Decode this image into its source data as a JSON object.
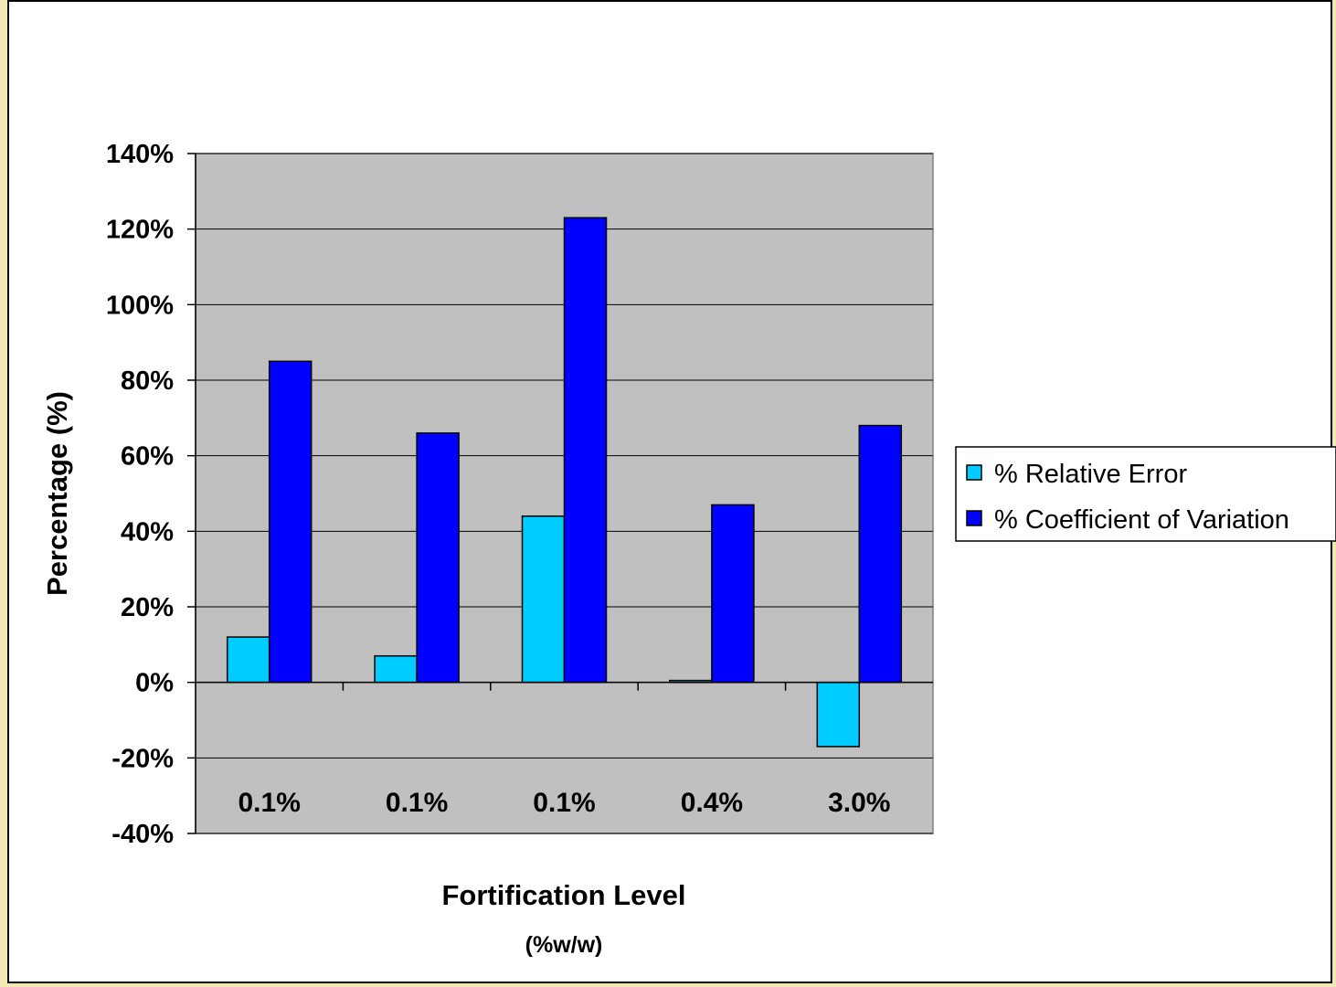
{
  "chart_data": {
    "type": "bar",
    "categories": [
      "0.1%",
      "0.1%",
      "0.1%",
      "0.4%",
      "3.0%"
    ],
    "series": [
      {
        "name": "% Relative Error",
        "color": "#00ccff",
        "values": [
          12,
          7,
          44,
          0.5,
          -17
        ]
      },
      {
        "name": "% Coefficient of Variation",
        "color": "#0000ff",
        "values": [
          85,
          66,
          123,
          47,
          68
        ]
      }
    ],
    "xlabel": "Fortification Level",
    "xlabel_sub": "(%w/w)",
    "ylabel": "Percentage (%)",
    "ylim": [
      -40,
      140
    ],
    "yticks": [
      -40,
      -20,
      0,
      20,
      40,
      60,
      80,
      100,
      120,
      140
    ],
    "ytick_labels": [
      "-40%",
      "-20%",
      "0%",
      "20%",
      "40%",
      "60%",
      "80%",
      "100%",
      "120%",
      "140%"
    ],
    "grid": true,
    "plot_background": "#c0c0c0",
    "legend_position": "right"
  }
}
